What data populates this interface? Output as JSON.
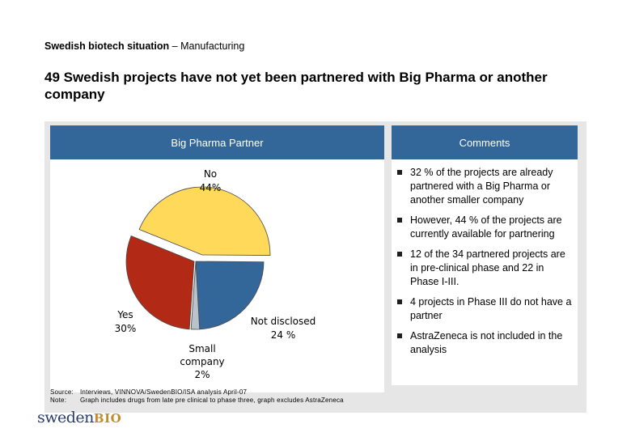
{
  "breadcrumb": {
    "bold": "Swedish biotech situation",
    "rest": " – Manufacturing"
  },
  "headline": "49 Swedish projects have not yet been partnered with Big Pharma or another company",
  "left_header": "Big Pharma Partner",
  "right_header": "Comments",
  "chart_data": {
    "type": "pie",
    "title": "Big Pharma Partner",
    "slices": [
      {
        "label": "No",
        "value": 44,
        "display": "44%",
        "color": "#ffd95a"
      },
      {
        "label": "Not disclosed",
        "value": 24,
        "display": "24 %",
        "color": "#336699"
      },
      {
        "label": "Small company",
        "value": 2,
        "display": "2%",
        "color": "#b9c3cc"
      },
      {
        "label": "Yes",
        "value": 30,
        "display": "30%",
        "color": "#b22a16"
      }
    ]
  },
  "labels": {
    "no_name": "No",
    "no_pct": "44%",
    "yes_name": "Yes",
    "yes_pct": "30%",
    "nd_name": "Not disclosed",
    "nd_pct": "24 %",
    "sc_name1": "Small",
    "sc_name2": "company",
    "sc_pct": "2%"
  },
  "comments": [
    "32 % of the projects are already partnered with a Big Pharma or another smaller company",
    "However, 44 % of the projects are currently available for partnering",
    "12 of the 34 partnered projects are in pre-clinical phase and 22 in Phase I-III.",
    "4 projects in Phase III do not have a partner",
    "AstraZeneca is not included in the analysis"
  ],
  "footnote": {
    "source_key": "Source:",
    "source_text": "Interviews, VINNOVA/SwedenBIO/ISA analysis April-07",
    "note_key": "Note:",
    "note_text": "Graph includes drugs from late pre clinical to phase three, graph excludes AstraZeneca"
  },
  "logo": {
    "part1": "sweden",
    "part2": "BIO"
  },
  "icons": {
    "bullet": "square-bullet-icon"
  }
}
